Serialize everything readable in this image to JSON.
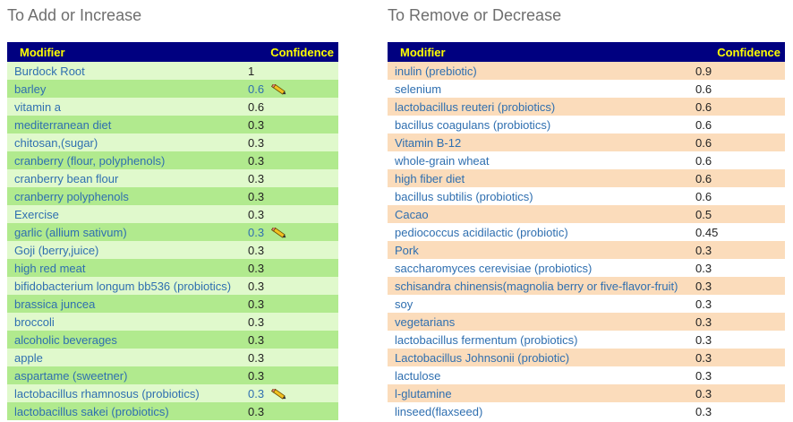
{
  "left": {
    "title": "To Add or Increase",
    "headers": {
      "modifier": "Modifier",
      "confidence": "Confidence"
    },
    "rows": [
      {
        "modifier": "Burdock Root",
        "confidence": "1",
        "edit": false
      },
      {
        "modifier": "barley",
        "confidence": "0.6",
        "edit": true
      },
      {
        "modifier": "vitamin a",
        "confidence": "0.6",
        "edit": false
      },
      {
        "modifier": "mediterranean diet",
        "confidence": "0.3",
        "edit": false
      },
      {
        "modifier": "chitosan,(sugar)",
        "confidence": "0.3",
        "edit": false
      },
      {
        "modifier": "cranberry (flour, polyphenols)",
        "confidence": "0.3",
        "edit": false
      },
      {
        "modifier": "cranberry bean flour",
        "confidence": "0.3",
        "edit": false
      },
      {
        "modifier": "cranberry polyphenols",
        "confidence": "0.3",
        "edit": false
      },
      {
        "modifier": "Exercise",
        "confidence": "0.3",
        "edit": false
      },
      {
        "modifier": "garlic (allium sativum)",
        "confidence": "0.3",
        "edit": true
      },
      {
        "modifier": "Goji (berry,juice)",
        "confidence": "0.3",
        "edit": false
      },
      {
        "modifier": "high red meat",
        "confidence": "0.3",
        "edit": false
      },
      {
        "modifier": "bifidobacterium longum bb536 (probiotics)",
        "confidence": "0.3",
        "edit": false
      },
      {
        "modifier": "brassica juncea",
        "confidence": "0.3",
        "edit": false
      },
      {
        "modifier": "broccoli",
        "confidence": "0.3",
        "edit": false
      },
      {
        "modifier": "alcoholic beverages",
        "confidence": "0.3",
        "edit": false
      },
      {
        "modifier": "apple",
        "confidence": "0.3",
        "edit": false
      },
      {
        "modifier": "aspartame (sweetner)",
        "confidence": "0.3",
        "edit": false
      },
      {
        "modifier": "lactobacillus rhamnosus (probiotics)",
        "confidence": "0.3",
        "edit": true
      },
      {
        "modifier": "lactobacillus sakei (probiotics)",
        "confidence": "0.3",
        "edit": false
      }
    ]
  },
  "right": {
    "title": "To Remove or Decrease",
    "headers": {
      "modifier": "Modifier",
      "confidence": "Confidence"
    },
    "rows": [
      {
        "modifier": "inulin (prebiotic)",
        "confidence": "0.9"
      },
      {
        "modifier": "selenium",
        "confidence": "0.6"
      },
      {
        "modifier": "lactobacillus reuteri (probiotics)",
        "confidence": "0.6"
      },
      {
        "modifier": "bacillus coagulans (probiotics)",
        "confidence": "0.6"
      },
      {
        "modifier": "Vitamin B-12",
        "confidence": "0.6"
      },
      {
        "modifier": "whole-grain wheat",
        "confidence": "0.6"
      },
      {
        "modifier": "high fiber diet",
        "confidence": "0.6"
      },
      {
        "modifier": "bacillus subtilis (probiotics)",
        "confidence": "0.6"
      },
      {
        "modifier": "Cacao",
        "confidence": "0.5"
      },
      {
        "modifier": "pediococcus acidilactic (probiotic)",
        "confidence": "0.45"
      },
      {
        "modifier": "Pork",
        "confidence": "0.3"
      },
      {
        "modifier": "saccharomyces cerevisiae (probiotics)",
        "confidence": "0.3"
      },
      {
        "modifier": "schisandra chinensis(magnolia berry or five-flavor-fruit)",
        "confidence": "0.3"
      },
      {
        "modifier": "soy",
        "confidence": "0.3"
      },
      {
        "modifier": "vegetarians",
        "confidence": "0.3"
      },
      {
        "modifier": "lactobacillus fermentum (probiotics)",
        "confidence": "0.3"
      },
      {
        "modifier": "Lactobacillus Johnsonii (probiotic)",
        "confidence": "0.3"
      },
      {
        "modifier": "lactulose",
        "confidence": "0.3"
      },
      {
        "modifier": "l-glutamine",
        "confidence": "0.3"
      },
      {
        "modifier": "linseed(flaxseed)",
        "confidence": "0.3"
      }
    ]
  },
  "icons": {
    "edit": "pencil-icon"
  }
}
